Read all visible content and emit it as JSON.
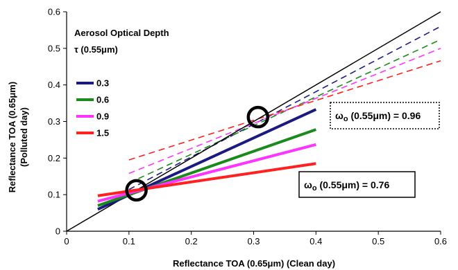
{
  "chart_data": {
    "type": "line",
    "xlabel": "Reflectance TOA (0.65μm) (Clean day)",
    "ylabel_line1": "Reflectance TOA (0.65μm)",
    "ylabel_line2": "(Polluted day)",
    "xlim": [
      0,
      0.6
    ],
    "ylim": [
      0,
      0.6
    ],
    "x_ticks": [
      "0",
      "0.1",
      "0.2",
      "0.3",
      "0.4",
      "0.5",
      "0.6"
    ],
    "y_ticks": [
      "0",
      "0.1",
      "0.2",
      "0.3",
      "0.4",
      "0.5",
      "0.6"
    ],
    "grid": false,
    "legend": {
      "title_line1": "Aerosol Optical Depth",
      "title_line2": "τ (0.55μm)",
      "position": "top-left",
      "entries": [
        "0.3",
        "0.6",
        "0.9",
        "1.5"
      ]
    },
    "colors": [
      "#1a1a80",
      "#1a8a1a",
      "#ff33ff",
      "#ff2020"
    ],
    "identity_line": {
      "x": [
        0,
        0.6
      ],
      "y": [
        0,
        0.6
      ],
      "color": "#000000"
    },
    "solid_series": [
      {
        "name": "0.3",
        "x": [
          0.05,
          0.4
        ],
        "y": [
          0.06,
          0.333
        ]
      },
      {
        "name": "0.6",
        "x": [
          0.05,
          0.4
        ],
        "y": [
          0.07,
          0.278
        ]
      },
      {
        "name": "0.9",
        "x": [
          0.05,
          0.4
        ],
        "y": [
          0.082,
          0.237
        ]
      },
      {
        "name": "1.5",
        "x": [
          0.05,
          0.4
        ],
        "y": [
          0.097,
          0.185
        ]
      }
    ],
    "dashed_series": [
      {
        "name": "0.3",
        "x": [
          0.1,
          0.6
        ],
        "y": [
          0.114,
          0.56
        ]
      },
      {
        "name": "0.6",
        "x": [
          0.1,
          0.6
        ],
        "y": [
          0.132,
          0.524
        ]
      },
      {
        "name": "0.9",
        "x": [
          0.1,
          0.6
        ],
        "y": [
          0.158,
          0.5
        ]
      },
      {
        "name": "1.5",
        "x": [
          0.1,
          0.6
        ],
        "y": [
          0.195,
          0.466
        ]
      }
    ],
    "circles": [
      {
        "x": 0.112,
        "y": 0.112
      },
      {
        "x": 0.307,
        "y": 0.312
      }
    ],
    "annotations": [
      {
        "id": "omega-096",
        "prefix": "ω",
        "sub": "o",
        "rest": " (0.55μm) = 0.96",
        "border": "dotted"
      },
      {
        "id": "omega-076",
        "prefix": "ω",
        "sub": "o",
        "rest": " (0.55μm) = 0.76",
        "border": "solid"
      }
    ]
  }
}
